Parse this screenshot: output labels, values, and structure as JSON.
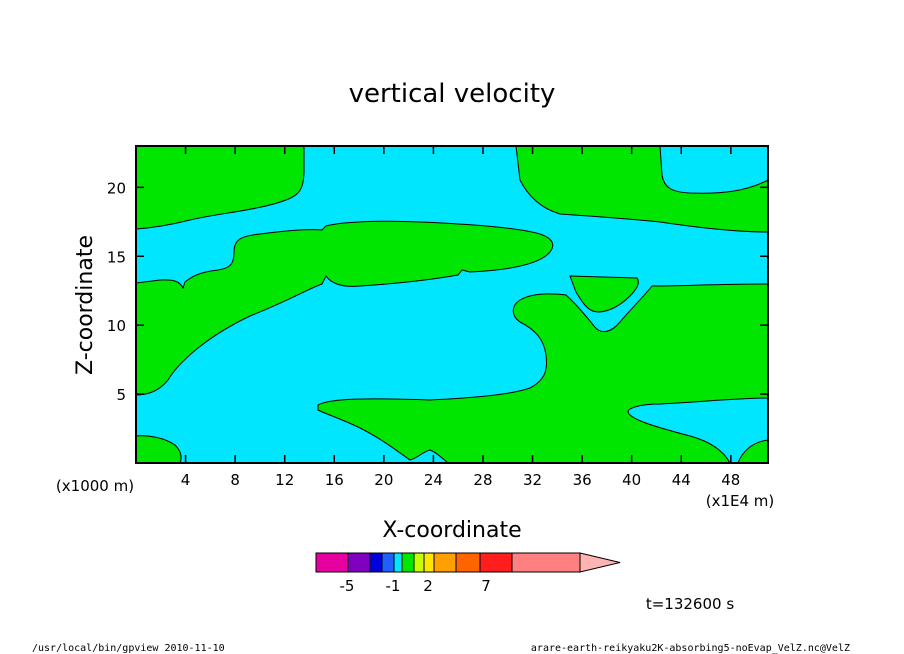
{
  "chart_data": {
    "type": "contour",
    "title": "vertical velocity",
    "xlabel": "X-coordinate",
    "ylabel": "Z-coordinate",
    "x_unit_left": "(x1000 m)",
    "x_unit_right": "(x1E4 m)",
    "xlim": [
      0,
      51
    ],
    "ylim": [
      0,
      23
    ],
    "x_ticks": [
      4,
      8,
      12,
      16,
      20,
      24,
      28,
      32,
      36,
      40,
      44,
      48
    ],
    "y_ticks": [
      5,
      10,
      15,
      20
    ],
    "colorbar": {
      "colors": [
        "#e600a0",
        "#8000c0",
        "#0000e0",
        "#2060ff",
        "#00e6ff",
        "#00e600",
        "#c8ff00",
        "#ffe600",
        "#ffa000",
        "#ff6400",
        "#ff1e1e",
        "#ff8080",
        "#ffb4b4"
      ],
      "tick_labels": [
        "-5",
        "-1",
        "2",
        "7"
      ]
    },
    "background_color": "#00e6ff",
    "positive_color": "#00e600"
  },
  "time_label": "t=132600 s",
  "footer": {
    "left": "/usr/local/bin/gpview   2010-11-10",
    "right": "arare-earth-reikyaku2K-absorbing5-noEvap_VelZ.nc@VelZ"
  }
}
